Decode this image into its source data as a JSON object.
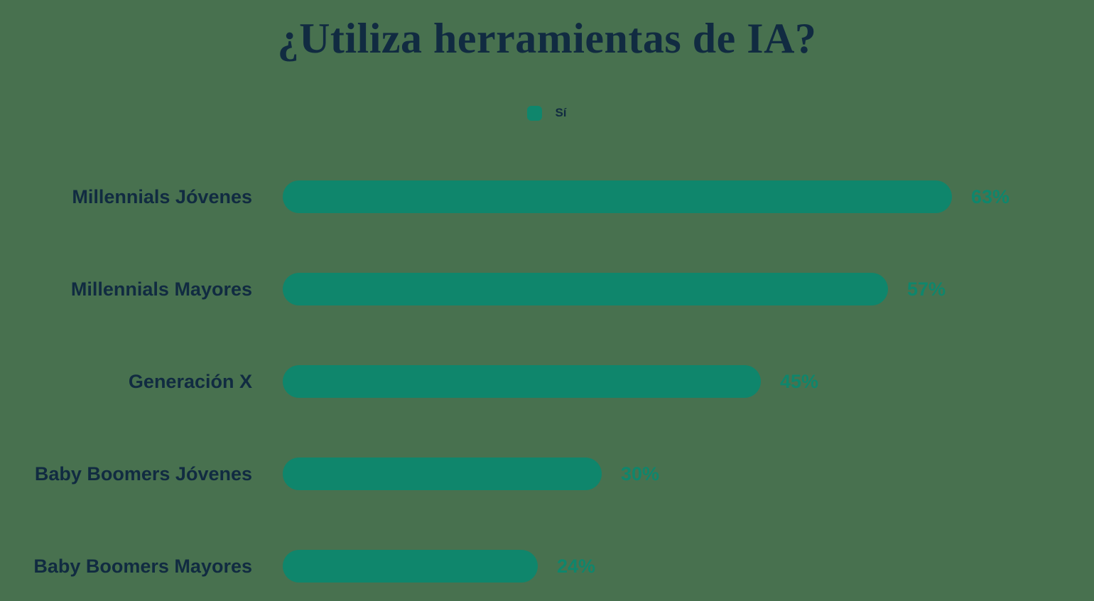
{
  "title": "¿Utiliza herramientas de IA?",
  "legend": {
    "entries": [
      {
        "label": "Sí",
        "color": "#0F866C"
      }
    ]
  },
  "colors": {
    "background": "#48714F",
    "bar": "#0F866C",
    "value_text": "#0F866C",
    "text_navy": "#112B41"
  },
  "chart_data": {
    "type": "bar",
    "orientation": "horizontal",
    "title": "¿Utiliza herramientas de IA?",
    "legend_entries": [
      "Sí"
    ],
    "legend_position": "top-center",
    "categories": [
      "Millennials Jóvenes",
      "Millennials Mayores",
      "Generación X",
      "Baby Boomers Jóvenes",
      "Baby Boomers Mayores"
    ],
    "series": [
      {
        "name": "Sí",
        "values": [
          63,
          57,
          45,
          30,
          24
        ]
      }
    ],
    "value_labels": [
      "63%",
      "57%",
      "45%",
      "30%",
      "24%"
    ],
    "unit": "%",
    "xlim": [
      0,
      100
    ],
    "grid": false,
    "axes_visible": false
  }
}
